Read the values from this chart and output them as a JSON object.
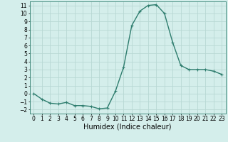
{
  "x": [
    0,
    1,
    2,
    3,
    4,
    5,
    6,
    7,
    8,
    9,
    10,
    11,
    12,
    13,
    14,
    15,
    16,
    17,
    18,
    19,
    20,
    21,
    22,
    23
  ],
  "y": [
    0.0,
    -0.7,
    -1.2,
    -1.3,
    -1.1,
    -1.5,
    -1.5,
    -1.6,
    -1.9,
    -1.8,
    0.3,
    3.3,
    8.5,
    10.3,
    11.0,
    11.1,
    10.0,
    6.4,
    3.5,
    3.0,
    3.0,
    3.0,
    2.8,
    2.4
  ],
  "line_color": "#2e7d6e",
  "marker": "+",
  "marker_size": 3,
  "linewidth": 1.0,
  "xlabel": "Humidex (Indice chaleur)",
  "xlim": [
    -0.5,
    23.5
  ],
  "ylim": [
    -2.5,
    11.5
  ],
  "yticks": [
    -2,
    -1,
    0,
    1,
    2,
    3,
    4,
    5,
    6,
    7,
    8,
    9,
    10,
    11
  ],
  "xticks": [
    0,
    1,
    2,
    3,
    4,
    5,
    6,
    7,
    8,
    9,
    10,
    11,
    12,
    13,
    14,
    15,
    16,
    17,
    18,
    19,
    20,
    21,
    22,
    23
  ],
  "bg_color": "#d4eeeb",
  "grid_color": "#b8d8d4",
  "tick_fontsize": 5.5,
  "xlabel_fontsize": 7.0
}
